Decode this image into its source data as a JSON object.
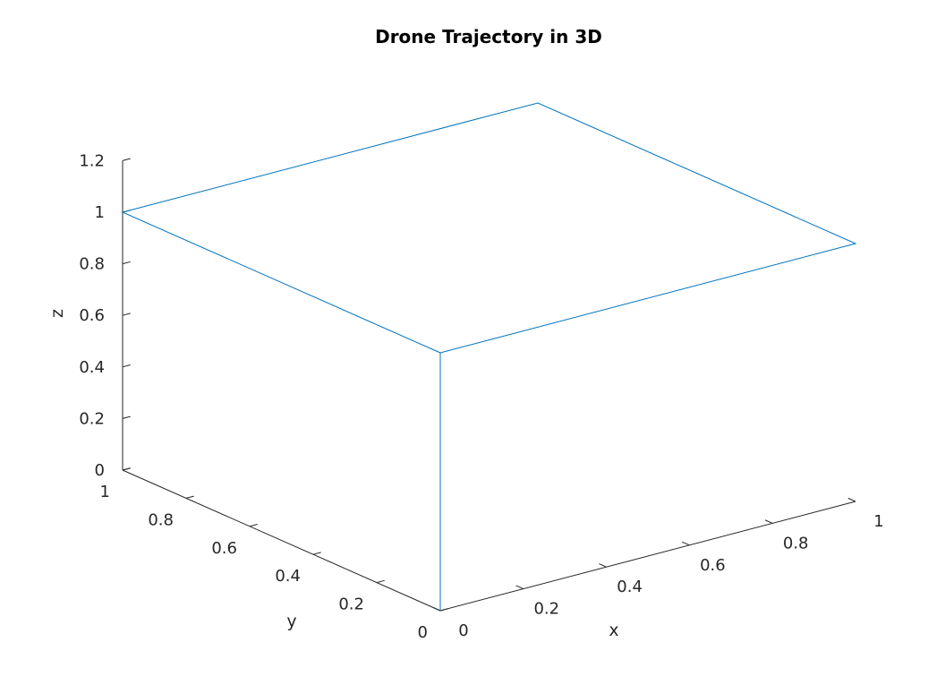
{
  "chart_data": {
    "type": "line3d",
    "title": "Drone Trajectory in 3D",
    "xlabel": "x",
    "ylabel": "y",
    "zlabel": "z",
    "xlim": [
      0,
      1
    ],
    "ylim": [
      0,
      1
    ],
    "zlim": [
      0,
      1.2
    ],
    "xticks": [
      0,
      0.2,
      0.4,
      0.6,
      0.8,
      1
    ],
    "yticks": [
      0,
      0.2,
      0.4,
      0.6,
      0.8,
      1
    ],
    "zticks": [
      0,
      0.2,
      0.4,
      0.6,
      0.8,
      1,
      1.2
    ],
    "grid": false,
    "line_color": "#0072BD",
    "series": [
      {
        "x": [
          0,
          0,
          0,
          1,
          1,
          0
        ],
        "y": [
          0,
          0,
          1,
          1,
          0,
          0
        ],
        "z": [
          0,
          1,
          1,
          1,
          1,
          1
        ]
      }
    ]
  }
}
